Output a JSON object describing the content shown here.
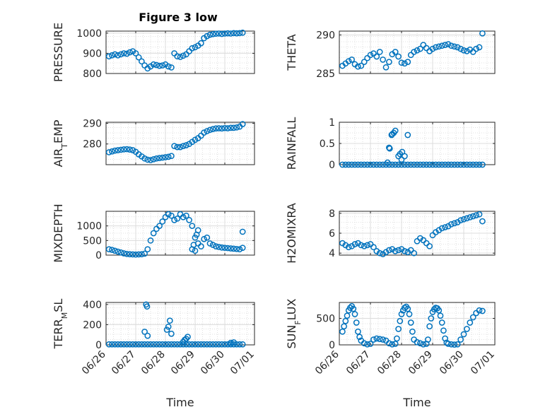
{
  "figure": {
    "title": "Figure 3 low",
    "xlabel": "Time",
    "marker_color": "#0072BD",
    "xticks": [
      "06/26",
      "06/27",
      "06/28",
      "06/29",
      "06/30",
      "07/01"
    ],
    "xlim": [
      0,
      5
    ]
  },
  "chart_data": [
    {
      "type": "scatter",
      "ylabel": "PRESSURE",
      "ylim": [
        800,
        1010
      ],
      "yticks": [
        800,
        900,
        1000
      ],
      "show_title": true,
      "show_xticks": false,
      "series": [
        {
          "x": [
            0.1,
            0.2,
            0.3,
            0.4,
            0.5,
            0.6,
            0.7,
            0.8,
            0.9,
            1.0,
            1.1,
            1.2,
            1.3,
            1.4,
            1.5,
            1.6,
            1.7,
            1.8,
            1.9,
            2.0,
            2.1,
            2.2,
            2.3,
            2.4,
            2.5,
            2.6,
            2.7,
            2.8,
            2.9,
            3.0,
            3.1,
            3.2,
            3.3,
            3.4,
            3.5,
            3.6,
            3.7,
            3.8,
            3.9,
            4.0,
            4.1,
            4.2,
            4.3,
            4.4,
            4.5,
            4.6
          ],
          "y": [
            885,
            890,
            895,
            890,
            895,
            900,
            898,
            905,
            910,
            900,
            880,
            860,
            840,
            825,
            835,
            845,
            842,
            838,
            840,
            845,
            835,
            830,
            900,
            885,
            882,
            888,
            895,
            910,
            925,
            930,
            938,
            950,
            975,
            985,
            992,
            995,
            997,
            998,
            996,
            998,
            999,
            998,
            1000,
            999,
            1000,
            1002
          ]
        }
      ]
    },
    {
      "type": "scatter",
      "ylabel": "THETA",
      "ylim": [
        285,
        290.5
      ],
      "yticks": [
        285,
        290
      ],
      "show_title": false,
      "show_xticks": false,
      "series": [
        {
          "x": [
            0.1,
            0.2,
            0.3,
            0.4,
            0.5,
            0.6,
            0.7,
            0.8,
            0.9,
            1.0,
            1.1,
            1.2,
            1.3,
            1.4,
            1.5,
            1.6,
            1.7,
            1.8,
            1.9,
            2.0,
            2.1,
            2.2,
            2.3,
            2.4,
            2.5,
            2.6,
            2.7,
            2.8,
            2.9,
            3.0,
            3.1,
            3.2,
            3.3,
            3.4,
            3.5,
            3.6,
            3.7,
            3.8,
            3.9,
            4.0,
            4.1,
            4.2,
            4.3,
            4.4,
            4.5,
            4.6
          ],
          "y": [
            286.0,
            286.3,
            286.6,
            286.8,
            286.2,
            285.9,
            286.0,
            286.5,
            287.0,
            287.4,
            287.6,
            287.2,
            287.8,
            286.8,
            285.8,
            286.5,
            287.5,
            287.8,
            287.2,
            286.4,
            286.3,
            286.5,
            287.4,
            287.8,
            288.0,
            288.2,
            288.7,
            288.3,
            287.9,
            288.2,
            288.4,
            288.5,
            288.6,
            288.7,
            288.8,
            288.6,
            288.5,
            288.4,
            288.2,
            288.0,
            287.9,
            288.1,
            287.8,
            288.2,
            288.4,
            290.2
          ]
        }
      ]
    },
    {
      "type": "scatter",
      "ylabel": "AIR_TEMP",
      "ylim": [
        270,
        290.5
      ],
      "yticks": [
        280,
        290
      ],
      "show_title": false,
      "show_xticks": false,
      "series": [
        {
          "x": [
            0.1,
            0.2,
            0.3,
            0.4,
            0.5,
            0.6,
            0.7,
            0.8,
            0.9,
            1.0,
            1.1,
            1.2,
            1.3,
            1.4,
            1.5,
            1.6,
            1.7,
            1.8,
            1.9,
            2.0,
            2.1,
            2.2,
            2.3,
            2.4,
            2.5,
            2.6,
            2.7,
            2.8,
            2.9,
            3.0,
            3.1,
            3.2,
            3.3,
            3.4,
            3.5,
            3.6,
            3.7,
            3.8,
            3.9,
            4.0,
            4.1,
            4.2,
            4.3,
            4.4,
            4.5,
            4.6
          ],
          "y": [
            276.0,
            276.4,
            276.8,
            277.0,
            277.2,
            277.4,
            277.5,
            277.3,
            277.0,
            276.2,
            275.0,
            274.0,
            273.0,
            272.4,
            272.2,
            272.6,
            273.0,
            273.2,
            273.4,
            273.6,
            273.8,
            274.2,
            279.0,
            278.5,
            278.5,
            279.0,
            279.4,
            280.0,
            281.0,
            282.0,
            282.8,
            284.0,
            285.5,
            286.2,
            286.8,
            287.2,
            287.5,
            287.6,
            287.5,
            287.7,
            287.6,
            287.8,
            287.8,
            288.0,
            288.4,
            289.6
          ]
        }
      ]
    },
    {
      "type": "scatter",
      "ylabel": "RAINFALL",
      "ylim": [
        0,
        1
      ],
      "yticks": [
        0,
        0.5,
        1
      ],
      "show_title": false,
      "show_xticks": false,
      "series": [
        {
          "x": [
            0.1,
            0.2,
            0.3,
            0.4,
            0.5,
            0.6,
            0.7,
            0.8,
            0.9,
            1.0,
            1.1,
            1.2,
            1.3,
            1.4,
            1.5,
            1.6,
            1.7,
            1.8,
            1.9,
            2.0,
            2.1,
            2.2,
            2.3,
            2.4,
            2.5,
            2.6,
            2.7,
            2.8,
            2.9,
            3.0,
            3.1,
            3.2,
            3.3,
            3.4,
            3.5,
            3.6,
            3.7,
            3.8,
            3.9,
            4.0,
            4.1,
            4.2,
            4.3,
            4.4,
            4.5,
            4.6,
            1.55,
            1.6,
            1.62,
            1.68,
            1.7,
            1.75,
            1.8,
            1.9,
            1.95,
            2.0,
            2.02,
            2.1,
            2.2
          ],
          "y": [
            0,
            0,
            0,
            0,
            0,
            0,
            0,
            0,
            0,
            0,
            0,
            0,
            0,
            0,
            0,
            0,
            0,
            0,
            0,
            0,
            0,
            0,
            0,
            0,
            0,
            0,
            0,
            0,
            0,
            0,
            0,
            0,
            0,
            0,
            0,
            0,
            0,
            0,
            0,
            0,
            0,
            0,
            0,
            0,
            0,
            0,
            0.05,
            0.4,
            0.38,
            0.7,
            0.72,
            0.75,
            0.8,
            0.2,
            0.25,
            0.12,
            0.3,
            0.2,
            0.7
          ]
        }
      ]
    },
    {
      "type": "scatter",
      "ylabel": "MIXDEPTH",
      "ylim": [
        0,
        1500
      ],
      "yticks": [
        0,
        500,
        1000
      ],
      "show_title": false,
      "show_xticks": false,
      "series": [
        {
          "x": [
            0.1,
            0.2,
            0.3,
            0.4,
            0.5,
            0.6,
            0.7,
            0.8,
            0.9,
            1.0,
            1.1,
            1.2,
            1.3,
            1.4,
            1.5,
            1.6,
            1.7,
            1.8,
            1.9,
            2.0,
            2.1,
            2.2,
            2.3,
            2.4,
            2.5,
            2.6,
            2.7,
            2.8,
            2.9,
            3.0,
            3.1,
            3.2,
            3.3,
            3.4,
            3.5,
            3.6,
            3.7,
            3.8,
            3.9,
            4.0,
            4.1,
            4.2,
            4.3,
            4.4,
            4.5,
            4.6,
            2.9,
            2.95,
            3.0,
            3.05,
            3.1,
            4.6
          ],
          "y": [
            200,
            180,
            150,
            120,
            90,
            60,
            40,
            30,
            25,
            20,
            25,
            30,
            50,
            200,
            500,
            750,
            900,
            1000,
            1150,
            1300,
            1400,
            1350,
            1200,
            1250,
            1400,
            1300,
            1350,
            1200,
            1000,
            600,
            400,
            300,
            550,
            600,
            400,
            350,
            300,
            280,
            260,
            250,
            240,
            230,
            220,
            210,
            200,
            250,
            200,
            350,
            150,
            700,
            850,
            800
          ]
        }
      ]
    },
    {
      "type": "scatter",
      "ylabel": "H2OMIXRA",
      "ylim": [
        3.8,
        8.2
      ],
      "yticks": [
        4,
        6,
        8
      ],
      "show_title": false,
      "show_xticks": false,
      "series": [
        {
          "x": [
            0.1,
            0.2,
            0.3,
            0.4,
            0.5,
            0.6,
            0.7,
            0.8,
            0.9,
            1.0,
            1.1,
            1.2,
            1.3,
            1.4,
            1.5,
            1.6,
            1.7,
            1.8,
            1.9,
            2.0,
            2.1,
            2.2,
            2.3,
            2.4,
            2.5,
            2.6,
            2.7,
            2.8,
            2.9,
            3.0,
            3.1,
            3.2,
            3.3,
            3.4,
            3.5,
            3.6,
            3.7,
            3.8,
            3.9,
            4.0,
            4.1,
            4.2,
            4.3,
            4.4,
            4.5,
            4.6
          ],
          "y": [
            5.0,
            4.8,
            4.6,
            4.7,
            4.9,
            5.0,
            4.8,
            4.7,
            4.8,
            4.9,
            4.6,
            4.2,
            4.0,
            3.9,
            4.1,
            4.3,
            4.4,
            4.2,
            4.3,
            4.4,
            4.2,
            4.1,
            4.3,
            4.0,
            5.2,
            5.5,
            5.3,
            5.0,
            4.7,
            5.8,
            6.1,
            6.3,
            6.5,
            6.6,
            6.7,
            6.9,
            7.0,
            7.1,
            7.3,
            7.4,
            7.5,
            7.6,
            7.7,
            7.8,
            7.9,
            7.2
          ]
        }
      ]
    },
    {
      "type": "scatter",
      "ylabel": "TERR_MSL",
      "ylim": [
        0,
        420
      ],
      "yticks": [
        0,
        200,
        400
      ],
      "show_title": false,
      "show_xticks": true,
      "series": [
        {
          "x": [
            0.1,
            0.2,
            0.3,
            0.4,
            0.5,
            0.6,
            0.7,
            0.8,
            0.9,
            1.0,
            1.1,
            1.2,
            1.3,
            1.4,
            1.5,
            1.6,
            1.7,
            1.8,
            1.9,
            2.0,
            2.1,
            2.2,
            2.3,
            2.4,
            2.5,
            2.6,
            2.7,
            2.8,
            2.9,
            3.0,
            3.1,
            3.2,
            3.3,
            3.4,
            3.5,
            3.6,
            3.7,
            3.8,
            3.9,
            4.0,
            4.1,
            4.2,
            4.3,
            4.4,
            4.5,
            4.6,
            1.3,
            1.35,
            1.38,
            1.4,
            2.05,
            2.1,
            2.15,
            2.2,
            2.6,
            2.65,
            2.7,
            2.75,
            4.2,
            4.3
          ],
          "y": [
            5,
            5,
            5,
            5,
            5,
            5,
            5,
            5,
            5,
            5,
            5,
            5,
            5,
            5,
            5,
            5,
            5,
            5,
            5,
            5,
            5,
            5,
            5,
            5,
            5,
            5,
            5,
            5,
            5,
            5,
            5,
            5,
            5,
            5,
            5,
            5,
            5,
            5,
            5,
            5,
            5,
            5,
            5,
            5,
            5,
            5,
            130,
            400,
            380,
            90,
            150,
            180,
            240,
            110,
            30,
            50,
            60,
            80,
            20,
            25
          ]
        }
      ]
    },
    {
      "type": "scatter",
      "ylabel": "SUN_FLUX",
      "ylim": [
        0,
        800
      ],
      "yticks": [
        0,
        500
      ],
      "show_title": false,
      "show_xticks": true,
      "series": [
        {
          "x": [
            0.1,
            0.15,
            0.2,
            0.25,
            0.3,
            0.35,
            0.4,
            0.45,
            0.5,
            0.55,
            0.6,
            0.65,
            0.7,
            0.8,
            0.9,
            1.0,
            1.1,
            1.2,
            1.3,
            1.4,
            1.5,
            1.6,
            1.7,
            1.8,
            1.85,
            1.9,
            1.95,
            2.0,
            2.05,
            2.1,
            2.15,
            2.2,
            2.25,
            2.3,
            2.35,
            2.4,
            2.5,
            2.6,
            2.7,
            2.8,
            2.85,
            2.9,
            2.95,
            3.0,
            3.05,
            3.1,
            3.15,
            3.2,
            3.25,
            3.3,
            3.35,
            3.4,
            3.45,
            3.5,
            3.6,
            3.7,
            3.8,
            3.9,
            4.0,
            4.1,
            4.2,
            4.3,
            4.4,
            4.5,
            4.6
          ],
          "y": [
            250,
            350,
            450,
            550,
            650,
            700,
            730,
            680,
            580,
            420,
            250,
            150,
            80,
            30,
            10,
            20,
            100,
            120,
            110,
            100,
            80,
            30,
            10,
            20,
            120,
            300,
            450,
            580,
            650,
            700,
            720,
            680,
            580,
            420,
            250,
            100,
            50,
            30,
            10,
            20,
            100,
            350,
            500,
            620,
            670,
            700,
            690,
            650,
            550,
            420,
            270,
            120,
            40,
            20,
            10,
            5,
            10,
            100,
            200,
            300,
            420,
            520,
            600,
            650,
            640
          ]
        }
      ]
    }
  ]
}
